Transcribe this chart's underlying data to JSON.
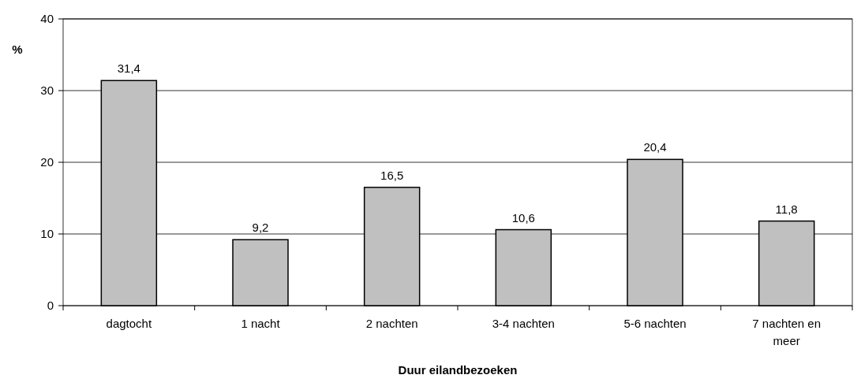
{
  "chart_data": {
    "type": "bar",
    "xlabel": "Duur eilandbezoeken",
    "ylabel": "%",
    "categories": [
      "dagtocht",
      "1 nacht",
      "2 nachten",
      "3-4 nachten",
      "5-6 nachten",
      "7 nachten en meer"
    ],
    "values": [
      31.4,
      9.2,
      16.5,
      10.6,
      20.4,
      11.8
    ],
    "value_labels": [
      "31,4",
      "9,2",
      "16,5",
      "10,6",
      "20,4",
      "11,8"
    ],
    "color": "#c0c0c0",
    "ylim": [
      0,
      40
    ],
    "yticks": [
      0,
      10,
      20,
      30,
      40
    ],
    "grid": "y"
  }
}
